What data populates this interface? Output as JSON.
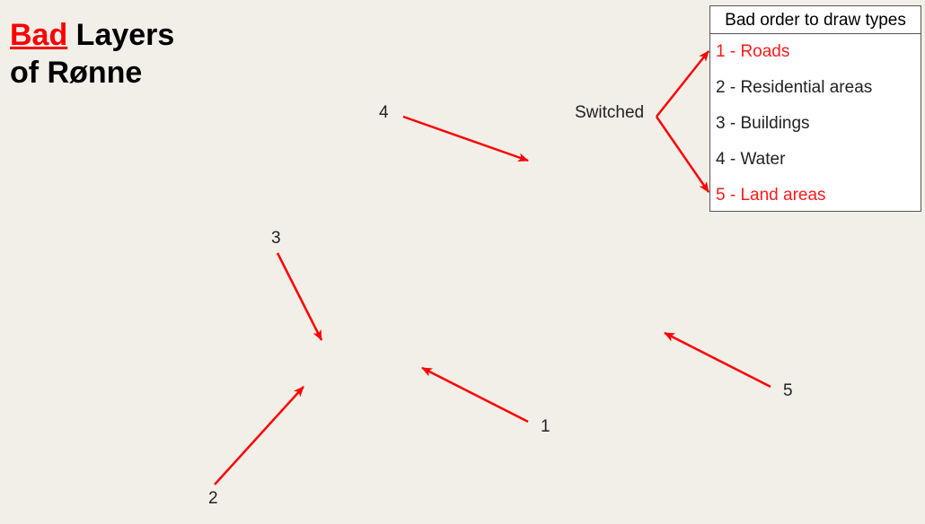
{
  "title": {
    "bad": "Bad",
    "rest_line1": " Layers",
    "line2": "of Rønne"
  },
  "legend": {
    "header": "Bad order to draw types",
    "items": [
      {
        "label": "1 - Roads",
        "highlight": true
      },
      {
        "label": "2 - Residential areas",
        "highlight": false
      },
      {
        "label": "3 - Buildings",
        "highlight": false
      },
      {
        "label": "4 - Water",
        "highlight": false
      },
      {
        "label": "5 - Land areas",
        "highlight": true
      }
    ]
  },
  "annotations": {
    "switched": "Switched",
    "n1": "1",
    "n2": "2",
    "n3": "3",
    "n4": "4",
    "n5": "5"
  },
  "colors": {
    "background": "#f2efe9",
    "arrow": "#ff0000",
    "highlight_text": "#ff1a1a"
  }
}
